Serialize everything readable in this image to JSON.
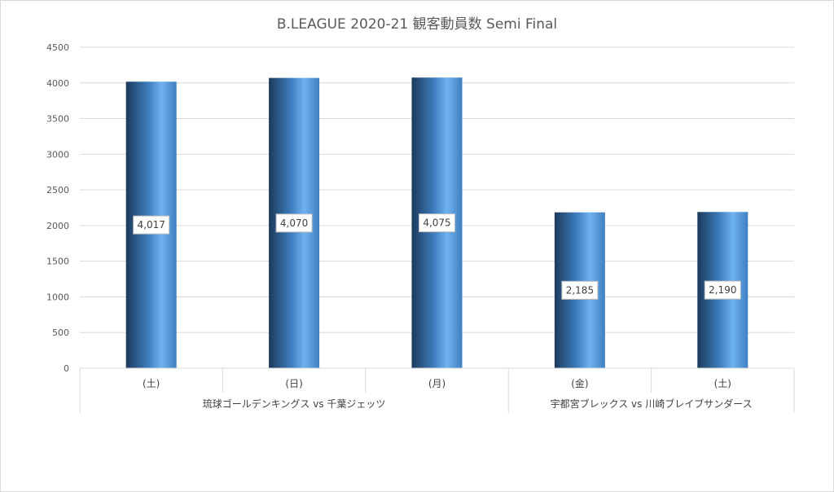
{
  "chart_data": {
    "type": "bar",
    "title": "B.LEAGUE 2020-21 観客動員数 Semi Final",
    "xlabel": "",
    "ylabel": "",
    "ylim": [
      0,
      4500
    ],
    "yticks": [
      0,
      500,
      1000,
      1500,
      2000,
      2500,
      3000,
      3500,
      4000,
      4500
    ],
    "grid": true,
    "legend": "none",
    "categories": [
      "(土)",
      "(日)",
      "(月)",
      "(金)",
      "(土)"
    ],
    "groups": [
      {
        "label": "琉球ゴールデンキングス vs 千葉ジェッツ",
        "count": 3
      },
      {
        "label": "宇都宮ブレックス vs 川崎ブレイブサンダース",
        "count": 2
      }
    ],
    "values": [
      4017,
      4070,
      4075,
      2185,
      2190
    ],
    "data_labels": [
      "4,017",
      "4,070",
      "4,075",
      "2,185",
      "2,190"
    ],
    "colors": {
      "bar_dark": "#1b3a5c",
      "bar_mid": "#3f7fc0",
      "bar_light": "#6fb2f0",
      "grid": "#d9d9d9",
      "text": "#595959"
    }
  }
}
